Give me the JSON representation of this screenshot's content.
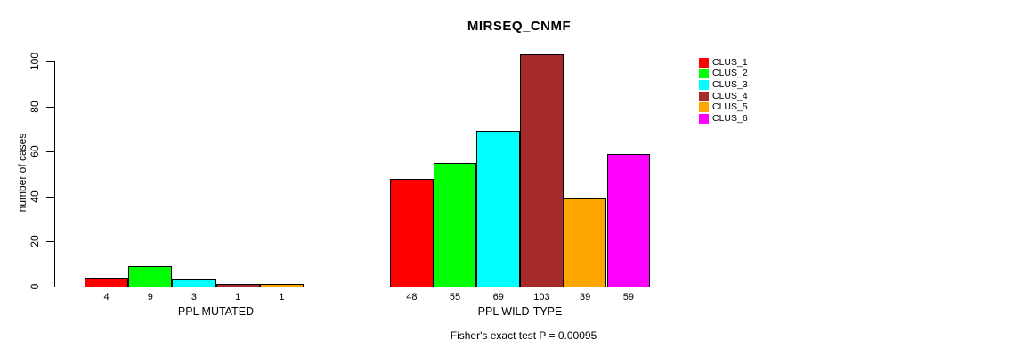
{
  "title": "MIRSEQ_CNMF",
  "annotation": "Fisher's exact test P = 0.00095",
  "chart_data": {
    "type": "bar",
    "title": "MIRSEQ_CNMF",
    "xlabel": "",
    "ylabel": "number of cases",
    "ylim": [
      0,
      100
    ],
    "ytick_labels": [
      "0",
      "20",
      "40",
      "60",
      "80",
      "100"
    ],
    "grid": false,
    "legend_position": "right",
    "legend": [
      {
        "label": "CLUS_1",
        "color": "#FF0000"
      },
      {
        "label": "CLUS_2",
        "color": "#00FF00"
      },
      {
        "label": "CLUS_3",
        "color": "#00FFFF"
      },
      {
        "label": "CLUS_4",
        "color": "#A52A2A"
      },
      {
        "label": "CLUS_5",
        "color": "#FFA500"
      },
      {
        "label": "CLUS_6",
        "color": "#FF00FF"
      }
    ],
    "groups": [
      {
        "name": "PPL MUTATED",
        "values": [
          4,
          9,
          3,
          1,
          1,
          0
        ],
        "bar_labels": [
          "4",
          "9",
          "3",
          "1",
          "1",
          ""
        ]
      },
      {
        "name": "PPL WILD-TYPE",
        "values": [
          48,
          55,
          69,
          103,
          39,
          59
        ],
        "bar_labels": [
          "48",
          "55",
          "69",
          "103",
          "39",
          "59"
        ]
      }
    ],
    "annotation": "Fisher's exact test P = 0.00095"
  }
}
